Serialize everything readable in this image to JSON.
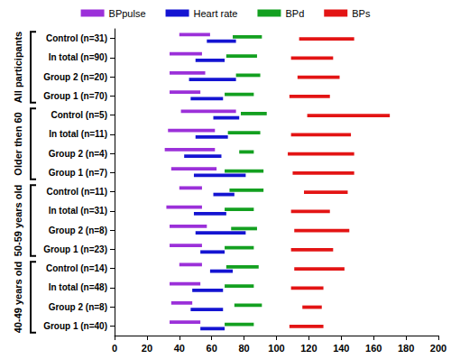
{
  "chart_data": {
    "type": "range_bar",
    "orientation": "horizontal",
    "categories": [
      "Control (n=31)",
      "In total (n=90)",
      "Group 2 (n=20)",
      "Group 1 (n=70)",
      "Control (n=5)",
      "In total (n=11)",
      "Group 2 (n=4)",
      "Group 1 (n=7)",
      "Control (n=11)",
      "In total (n=31)",
      "Group 2 (n=8)",
      "Group 1 (n=23)",
      "Control (n=14)",
      "In total (n=48)",
      "Group 2 (n=8)",
      "Group 1 (n=40)"
    ],
    "groups": [
      {
        "label": "All participants",
        "size": 4
      },
      {
        "label": "Older then 60",
        "size": 4
      },
      {
        "label": "50-59 years old",
        "size": 4
      },
      {
        "label": "40-49 years old",
        "size": 4
      }
    ],
    "series": [
      {
        "name": "BPpulse",
        "color": "#9b30d9",
        "values": [
          [
            40,
            59
          ],
          [
            34,
            54
          ],
          [
            34,
            56
          ],
          [
            34,
            53
          ],
          [
            41,
            75
          ],
          [
            33,
            62
          ],
          [
            31,
            62
          ],
          [
            35,
            63
          ],
          [
            40,
            54
          ],
          [
            32,
            54
          ],
          [
            34,
            57
          ],
          [
            34,
            54
          ],
          [
            40,
            54
          ],
          [
            34,
            53
          ],
          [
            35,
            48
          ],
          [
            34,
            53
          ]
        ]
      },
      {
        "name": "Heart rate",
        "color": "#1414d2",
        "values": [
          [
            57,
            75
          ],
          [
            50,
            68
          ],
          [
            46,
            75
          ],
          [
            47,
            67
          ],
          [
            61,
            77
          ],
          [
            50,
            70
          ],
          [
            43,
            66
          ],
          [
            49,
            81
          ],
          [
            61,
            74
          ],
          [
            49,
            69
          ],
          [
            50,
            81
          ],
          [
            53,
            68
          ],
          [
            59,
            73
          ],
          [
            48,
            67
          ],
          [
            47,
            67
          ],
          [
            53,
            68
          ]
        ]
      },
      {
        "name": "BPd",
        "color": "#13a020",
        "values": [
          [
            73,
            91
          ],
          [
            69,
            88
          ],
          [
            75,
            90
          ],
          [
            68,
            86
          ],
          [
            78,
            94
          ],
          [
            70,
            90
          ],
          [
            77,
            86
          ],
          [
            68,
            92
          ],
          [
            71,
            92
          ],
          [
            68,
            86
          ],
          [
            72,
            88
          ],
          [
            68,
            86
          ],
          [
            69,
            89
          ],
          [
            68,
            86
          ],
          [
            74,
            91
          ],
          [
            68,
            86
          ]
        ]
      },
      {
        "name": "BPs",
        "color": "#e31414",
        "values": [
          [
            114,
            148
          ],
          [
            109,
            135
          ],
          [
            113,
            139
          ],
          [
            108,
            133
          ],
          [
            119,
            170
          ],
          [
            109,
            146
          ],
          [
            107,
            148
          ],
          [
            110,
            148
          ],
          [
            117,
            144
          ],
          [
            109,
            133
          ],
          [
            111,
            145
          ],
          [
            109,
            135
          ],
          [
            111,
            142
          ],
          [
            109,
            129
          ],
          [
            116,
            128
          ],
          [
            108,
            129
          ]
        ]
      }
    ],
    "xlim": [
      0,
      200
    ],
    "xticks": [
      0,
      20,
      40,
      60,
      80,
      100,
      120,
      140,
      160,
      180,
      200
    ],
    "legend": "top",
    "grid": false
  }
}
